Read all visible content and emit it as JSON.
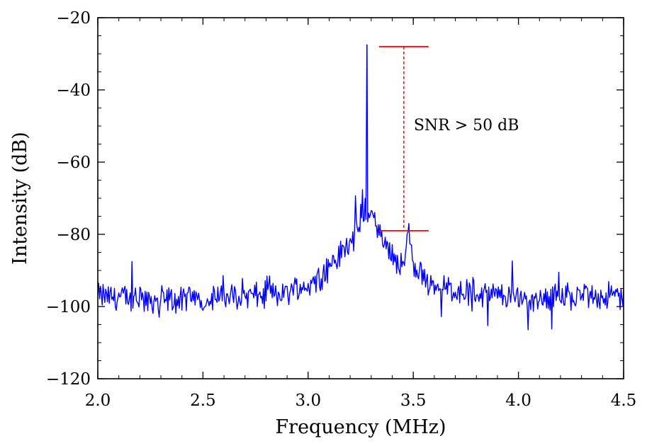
{
  "chart_data": {
    "type": "line",
    "title": "",
    "xlabel": "Frequency (MHz)",
    "ylabel": "Intensity (dB)",
    "xlim": [
      2.0,
      4.5
    ],
    "ylim": [
      -120,
      -20
    ],
    "x_ticks": [
      2.0,
      2.5,
      3.0,
      3.5,
      4.0,
      4.5
    ],
    "x_tick_labels": [
      "2.0",
      "2.5",
      "3.0",
      "3.5",
      "4.0",
      "4.5"
    ],
    "y_ticks": [
      -120,
      -100,
      -80,
      -60,
      -40,
      -20
    ],
    "y_tick_labels": [
      "−120",
      "−100",
      "−80",
      "−60",
      "−40",
      "−20"
    ],
    "grid": false,
    "legend": "none",
    "series": [
      {
        "color": "#0000ff",
        "description": "noisy spectrum with sharp peak",
        "x": [
          2.0,
          2.1,
          2.2,
          2.3,
          2.4,
          2.5,
          2.6,
          2.7,
          2.8,
          2.9,
          3.0,
          3.05,
          3.1,
          3.15,
          3.2,
          3.25,
          3.27,
          3.28,
          3.29,
          3.31,
          3.35,
          3.4,
          3.45,
          3.48,
          3.5,
          3.55,
          3.6,
          3.7,
          3.8,
          3.9,
          4.0,
          4.1,
          4.2,
          4.3,
          4.4,
          4.5
        ],
        "y": [
          -97,
          -97.5,
          -98,
          -98,
          -98.5,
          -98,
          -97.5,
          -97,
          -97,
          -96,
          -94,
          -92,
          -89,
          -86,
          -82,
          -77,
          -72,
          -27.5,
          -72,
          -76,
          -81,
          -86,
          -89,
          -79,
          -90,
          -92,
          -94,
          -95.5,
          -96.5,
          -97,
          -97.5,
          -97.5,
          -97,
          -97,
          -97,
          -97
        ]
      }
    ],
    "annotations": [
      {
        "text": "SNR > 50 dB",
        "color": "#ff0000",
        "x": 3.455,
        "y_top": -28,
        "y_bottom": -79
      }
    ]
  }
}
